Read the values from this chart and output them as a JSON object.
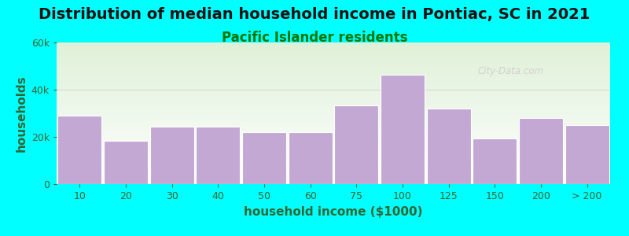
{
  "title": "Distribution of median household income in Pontiac, SC in 2021",
  "subtitle": "Pacific Islander residents",
  "xlabel": "household income ($1000)",
  "ylabel": "households",
  "background_color": "#00FFFF",
  "plot_bg_top": "#dff0d8",
  "plot_bg_bottom": "#ffffff",
  "bar_color": "#c4a8d4",
  "bar_edge_color": "#ffffff",
  "categories": [
    "10",
    "20",
    "30",
    "40",
    "50",
    "60",
    "75",
    "100",
    "125",
    "150",
    "200",
    "> 200"
  ],
  "values": [
    29000,
    18500,
    24500,
    24500,
    22000,
    22000,
    33500,
    46500,
    32000,
    19500,
    28000,
    25000
  ],
  "ylim": [
    0,
    60000
  ],
  "yticks": [
    0,
    20000,
    40000,
    60000
  ],
  "ytick_labels": [
    "0",
    "20k",
    "40k",
    "60k"
  ],
  "title_fontsize": 14,
  "subtitle_fontsize": 12,
  "axis_label_fontsize": 11,
  "tick_fontsize": 9,
  "title_color": "#111111",
  "subtitle_color": "#007700",
  "axis_label_color": "#336633",
  "tick_color": "#336633",
  "watermark_text": "City-Data.com",
  "watermark_color": "#cccccc"
}
